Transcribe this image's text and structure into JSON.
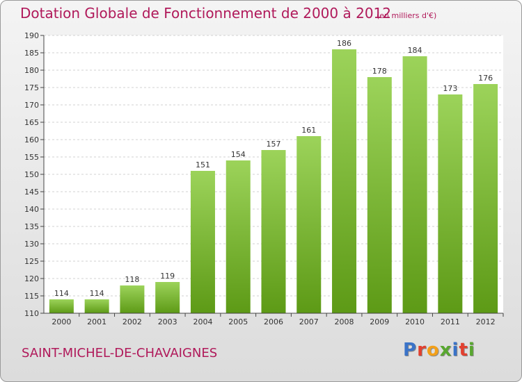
{
  "header": {
    "title": "Dotation Globale de Fonctionnement de 2000 à 2012",
    "unit": "(en milliers d'€)"
  },
  "footer": {
    "place": "SAINT-MICHEL-DE-CHAVAIGNES",
    "brand": "Proxiti",
    "brand_colors": [
      "#3a73c8",
      "#e2402f",
      "#f3a019",
      "#58a72f",
      "#3a73c8",
      "#e2402f",
      "#58a72f"
    ]
  },
  "chart_data": {
    "type": "bar",
    "categories": [
      "2000",
      "2001",
      "2002",
      "2003",
      "2004",
      "2005",
      "2006",
      "2007",
      "2008",
      "2009",
      "2010",
      "2011",
      "2012"
    ],
    "values": [
      114,
      114,
      118,
      119,
      151,
      154,
      157,
      161,
      186,
      178,
      184,
      173,
      176
    ],
    "value_labels": [
      "114",
      "114",
      "118",
      "119",
      "151",
      "154",
      "157",
      "161",
      "186",
      "178",
      "184",
      "173",
      "176"
    ],
    "ylim": [
      110,
      190
    ],
    "yticks": [
      110,
      115,
      120,
      125,
      130,
      135,
      140,
      145,
      150,
      155,
      160,
      165,
      170,
      175,
      180,
      185,
      190
    ],
    "ytick_labels": [
      "110",
      "115",
      "120",
      "125",
      "130",
      "135",
      "140",
      "145",
      "150",
      "155",
      "160",
      "165",
      "170",
      "175",
      "180",
      "185",
      "190"
    ],
    "grid": true,
    "bar_color_top": "#9cd35a",
    "bar_color_bottom": "#5d9a16"
  }
}
